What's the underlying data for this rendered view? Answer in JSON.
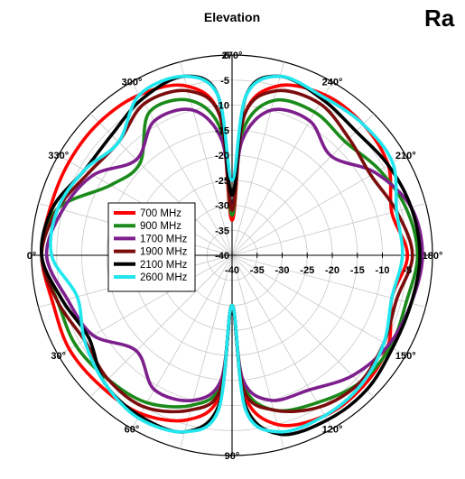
{
  "chart_data": {
    "type": "polar-line",
    "title": "Elevation",
    "corner_text": "Ra",
    "angle_labels": [
      "0°",
      "30°",
      "60°",
      "90°",
      "120°",
      "150°",
      "180°",
      "210°",
      "240°",
      "270°",
      "300°",
      "330°"
    ],
    "radial_tick_labels": [
      "-40",
      "-35",
      "-30",
      "-25",
      "-20",
      "-15",
      "-10",
      "-5",
      "0"
    ],
    "rlim": [
      -40,
      0
    ],
    "grid": true,
    "legend_position": "left-center",
    "colors": {
      "corner_text": "#1f5fa8",
      "grid": "#c8c8c8"
    },
    "series": [
      {
        "name": "700 MHz",
        "color": "#ff0000",
        "points": [
          [
            0,
            -2
          ],
          [
            15,
            -3
          ],
          [
            30,
            -2.5
          ],
          [
            45,
            -3
          ],
          [
            60,
            -3.5
          ],
          [
            75,
            -6
          ],
          [
            85,
            -12
          ],
          [
            90,
            -30
          ],
          [
            95,
            -12
          ],
          [
            105,
            -5
          ],
          [
            120,
            -3
          ],
          [
            135,
            -3
          ],
          [
            150,
            -4
          ],
          [
            165,
            -7
          ],
          [
            180,
            -5
          ],
          [
            195,
            -7
          ],
          [
            210,
            -4
          ],
          [
            225,
            -3
          ],
          [
            240,
            -3
          ],
          [
            255,
            -5
          ],
          [
            265,
            -12
          ],
          [
            270,
            -33
          ],
          [
            275,
            -12
          ],
          [
            285,
            -5
          ],
          [
            300,
            -3
          ],
          [
            315,
            -2.5
          ],
          [
            330,
            -2.5
          ],
          [
            345,
            -2.5
          ]
        ]
      },
      {
        "name": "900 MHz",
        "color": "#1a8a1a",
        "points": [
          [
            0,
            -2
          ],
          [
            15,
            -4
          ],
          [
            30,
            -4
          ],
          [
            45,
            -5
          ],
          [
            60,
            -6
          ],
          [
            75,
            -9
          ],
          [
            85,
            -14
          ],
          [
            90,
            -30
          ],
          [
            95,
            -14
          ],
          [
            105,
            -8
          ],
          [
            120,
            -6
          ],
          [
            135,
            -4
          ],
          [
            150,
            -3.5
          ],
          [
            165,
            -4
          ],
          [
            180,
            -3
          ],
          [
            195,
            -4
          ],
          [
            210,
            -6
          ],
          [
            225,
            -8
          ],
          [
            240,
            -7
          ],
          [
            255,
            -8
          ],
          [
            265,
            -15
          ],
          [
            270,
            -32
          ],
          [
            275,
            -15
          ],
          [
            285,
            -8
          ],
          [
            300,
            -7
          ],
          [
            315,
            -14
          ],
          [
            330,
            -12
          ],
          [
            345,
            -4
          ]
        ]
      },
      {
        "name": "1700 MHz",
        "color": "#7d1f8c",
        "points": [
          [
            0,
            -3
          ],
          [
            15,
            -6
          ],
          [
            30,
            -8
          ],
          [
            45,
            -13
          ],
          [
            60,
            -9
          ],
          [
            75,
            -10
          ],
          [
            85,
            -15
          ],
          [
            90,
            -30
          ],
          [
            95,
            -15
          ],
          [
            105,
            -10
          ],
          [
            120,
            -9
          ],
          [
            135,
            -6
          ],
          [
            150,
            -4
          ],
          [
            165,
            -3
          ],
          [
            180,
            -2
          ],
          [
            195,
            -3
          ],
          [
            210,
            -7
          ],
          [
            225,
            -12
          ],
          [
            240,
            -9
          ],
          [
            255,
            -10
          ],
          [
            265,
            -17
          ],
          [
            270,
            -31
          ],
          [
            275,
            -17
          ],
          [
            285,
            -10
          ],
          [
            300,
            -9
          ],
          [
            315,
            -13
          ],
          [
            330,
            -8
          ],
          [
            345,
            -5
          ]
        ]
      },
      {
        "name": "1900 MHz",
        "color": "#7b0c0c",
        "points": [
          [
            0,
            -2
          ],
          [
            15,
            -4
          ],
          [
            30,
            -6
          ],
          [
            45,
            -5
          ],
          [
            60,
            -5
          ],
          [
            75,
            -8
          ],
          [
            85,
            -13
          ],
          [
            90,
            -30
          ],
          [
            95,
            -13
          ],
          [
            105,
            -8
          ],
          [
            120,
            -5
          ],
          [
            135,
            -4
          ],
          [
            150,
            -5
          ],
          [
            165,
            -6
          ],
          [
            180,
            -4
          ],
          [
            195,
            -6
          ],
          [
            210,
            -8
          ],
          [
            225,
            -7
          ],
          [
            240,
            -5
          ],
          [
            255,
            -6
          ],
          [
            265,
            -12
          ],
          [
            270,
            -31
          ],
          [
            275,
            -12
          ],
          [
            285,
            -6
          ],
          [
            300,
            -5
          ],
          [
            315,
            -8
          ],
          [
            330,
            -7
          ],
          [
            345,
            -4
          ]
        ]
      },
      {
        "name": "2100 MHz",
        "color": "#000000",
        "points": [
          [
            0,
            -2
          ],
          [
            15,
            -5
          ],
          [
            30,
            -7
          ],
          [
            45,
            -4
          ],
          [
            60,
            -3
          ],
          [
            75,
            -3.5
          ],
          [
            85,
            -10
          ],
          [
            90,
            -30
          ],
          [
            95,
            -10
          ],
          [
            105,
            -3
          ],
          [
            120,
            -2
          ],
          [
            135,
            -2
          ],
          [
            150,
            -3
          ],
          [
            165,
            -3
          ],
          [
            180,
            -2.5
          ],
          [
            195,
            -3
          ],
          [
            210,
            -4
          ],
          [
            225,
            -5
          ],
          [
            240,
            -4
          ],
          [
            255,
            -3
          ],
          [
            265,
            -8
          ],
          [
            270,
            -28
          ],
          [
            275,
            -8
          ],
          [
            285,
            -3
          ],
          [
            300,
            -4
          ],
          [
            315,
            -6
          ],
          [
            330,
            -6
          ],
          [
            345,
            -3
          ]
        ]
      },
      {
        "name": "2600 MHz",
        "color": "#22e6ee",
        "points": [
          [
            0,
            -4
          ],
          [
            15,
            -8
          ],
          [
            30,
            -6
          ],
          [
            45,
            -4
          ],
          [
            60,
            -2.5
          ],
          [
            75,
            -3.5
          ],
          [
            85,
            -9
          ],
          [
            90,
            -30
          ],
          [
            95,
            -9
          ],
          [
            105,
            -3.5
          ],
          [
            120,
            -3
          ],
          [
            135,
            -3.5
          ],
          [
            150,
            -5
          ],
          [
            165,
            -7
          ],
          [
            180,
            -6
          ],
          [
            195,
            -6
          ],
          [
            210,
            -3
          ],
          [
            225,
            -3
          ],
          [
            240,
            -3.5
          ],
          [
            255,
            -3
          ],
          [
            265,
            -8
          ],
          [
            270,
            -25
          ],
          [
            275,
            -8
          ],
          [
            285,
            -3
          ],
          [
            300,
            -3
          ],
          [
            315,
            -8
          ],
          [
            330,
            -6
          ],
          [
            345,
            -4
          ]
        ]
      }
    ]
  }
}
